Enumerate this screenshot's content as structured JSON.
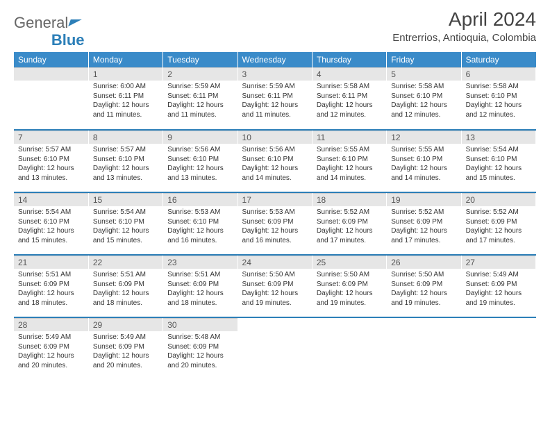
{
  "logo": {
    "part1": "General",
    "part2": "Blue"
  },
  "title": "April 2024",
  "subtitle": "Entrerrios, Antioquia, Colombia",
  "colors": {
    "header_bg": "#3a8bc9",
    "header_text": "#ffffff",
    "daynum_bg": "#e6e6e6",
    "rule": "#2c7fb8",
    "text": "#333333"
  },
  "day_headers": [
    "Sunday",
    "Monday",
    "Tuesday",
    "Wednesday",
    "Thursday",
    "Friday",
    "Saturday"
  ],
  "grid": [
    [
      {
        "blank": true
      },
      {
        "n": "1",
        "sunrise": "6:00 AM",
        "sunset": "6:11 PM",
        "daylight": "12 hours and 11 minutes."
      },
      {
        "n": "2",
        "sunrise": "5:59 AM",
        "sunset": "6:11 PM",
        "daylight": "12 hours and 11 minutes."
      },
      {
        "n": "3",
        "sunrise": "5:59 AM",
        "sunset": "6:11 PM",
        "daylight": "12 hours and 11 minutes."
      },
      {
        "n": "4",
        "sunrise": "5:58 AM",
        "sunset": "6:11 PM",
        "daylight": "12 hours and 12 minutes."
      },
      {
        "n": "5",
        "sunrise": "5:58 AM",
        "sunset": "6:10 PM",
        "daylight": "12 hours and 12 minutes."
      },
      {
        "n": "6",
        "sunrise": "5:58 AM",
        "sunset": "6:10 PM",
        "daylight": "12 hours and 12 minutes."
      }
    ],
    [
      {
        "n": "7",
        "sunrise": "5:57 AM",
        "sunset": "6:10 PM",
        "daylight": "12 hours and 13 minutes."
      },
      {
        "n": "8",
        "sunrise": "5:57 AM",
        "sunset": "6:10 PM",
        "daylight": "12 hours and 13 minutes."
      },
      {
        "n": "9",
        "sunrise": "5:56 AM",
        "sunset": "6:10 PM",
        "daylight": "12 hours and 13 minutes."
      },
      {
        "n": "10",
        "sunrise": "5:56 AM",
        "sunset": "6:10 PM",
        "daylight": "12 hours and 14 minutes."
      },
      {
        "n": "11",
        "sunrise": "5:55 AM",
        "sunset": "6:10 PM",
        "daylight": "12 hours and 14 minutes."
      },
      {
        "n": "12",
        "sunrise": "5:55 AM",
        "sunset": "6:10 PM",
        "daylight": "12 hours and 14 minutes."
      },
      {
        "n": "13",
        "sunrise": "5:54 AM",
        "sunset": "6:10 PM",
        "daylight": "12 hours and 15 minutes."
      }
    ],
    [
      {
        "n": "14",
        "sunrise": "5:54 AM",
        "sunset": "6:10 PM",
        "daylight": "12 hours and 15 minutes."
      },
      {
        "n": "15",
        "sunrise": "5:54 AM",
        "sunset": "6:10 PM",
        "daylight": "12 hours and 15 minutes."
      },
      {
        "n": "16",
        "sunrise": "5:53 AM",
        "sunset": "6:10 PM",
        "daylight": "12 hours and 16 minutes."
      },
      {
        "n": "17",
        "sunrise": "5:53 AM",
        "sunset": "6:09 PM",
        "daylight": "12 hours and 16 minutes."
      },
      {
        "n": "18",
        "sunrise": "5:52 AM",
        "sunset": "6:09 PM",
        "daylight": "12 hours and 17 minutes."
      },
      {
        "n": "19",
        "sunrise": "5:52 AM",
        "sunset": "6:09 PM",
        "daylight": "12 hours and 17 minutes."
      },
      {
        "n": "20",
        "sunrise": "5:52 AM",
        "sunset": "6:09 PM",
        "daylight": "12 hours and 17 minutes."
      }
    ],
    [
      {
        "n": "21",
        "sunrise": "5:51 AM",
        "sunset": "6:09 PM",
        "daylight": "12 hours and 18 minutes."
      },
      {
        "n": "22",
        "sunrise": "5:51 AM",
        "sunset": "6:09 PM",
        "daylight": "12 hours and 18 minutes."
      },
      {
        "n": "23",
        "sunrise": "5:51 AM",
        "sunset": "6:09 PM",
        "daylight": "12 hours and 18 minutes."
      },
      {
        "n": "24",
        "sunrise": "5:50 AM",
        "sunset": "6:09 PM",
        "daylight": "12 hours and 19 minutes."
      },
      {
        "n": "25",
        "sunrise": "5:50 AM",
        "sunset": "6:09 PM",
        "daylight": "12 hours and 19 minutes."
      },
      {
        "n": "26",
        "sunrise": "5:50 AM",
        "sunset": "6:09 PM",
        "daylight": "12 hours and 19 minutes."
      },
      {
        "n": "27",
        "sunrise": "5:49 AM",
        "sunset": "6:09 PM",
        "daylight": "12 hours and 19 minutes."
      }
    ],
    [
      {
        "n": "28",
        "sunrise": "5:49 AM",
        "sunset": "6:09 PM",
        "daylight": "12 hours and 20 minutes."
      },
      {
        "n": "29",
        "sunrise": "5:49 AM",
        "sunset": "6:09 PM",
        "daylight": "12 hours and 20 minutes."
      },
      {
        "n": "30",
        "sunrise": "5:48 AM",
        "sunset": "6:09 PM",
        "daylight": "12 hours and 20 minutes."
      },
      {
        "blank": true
      },
      {
        "blank": true
      },
      {
        "blank": true
      },
      {
        "blank": true
      }
    ]
  ],
  "labels": {
    "sunrise": "Sunrise:",
    "sunset": "Sunset:",
    "daylight": "Daylight:"
  }
}
